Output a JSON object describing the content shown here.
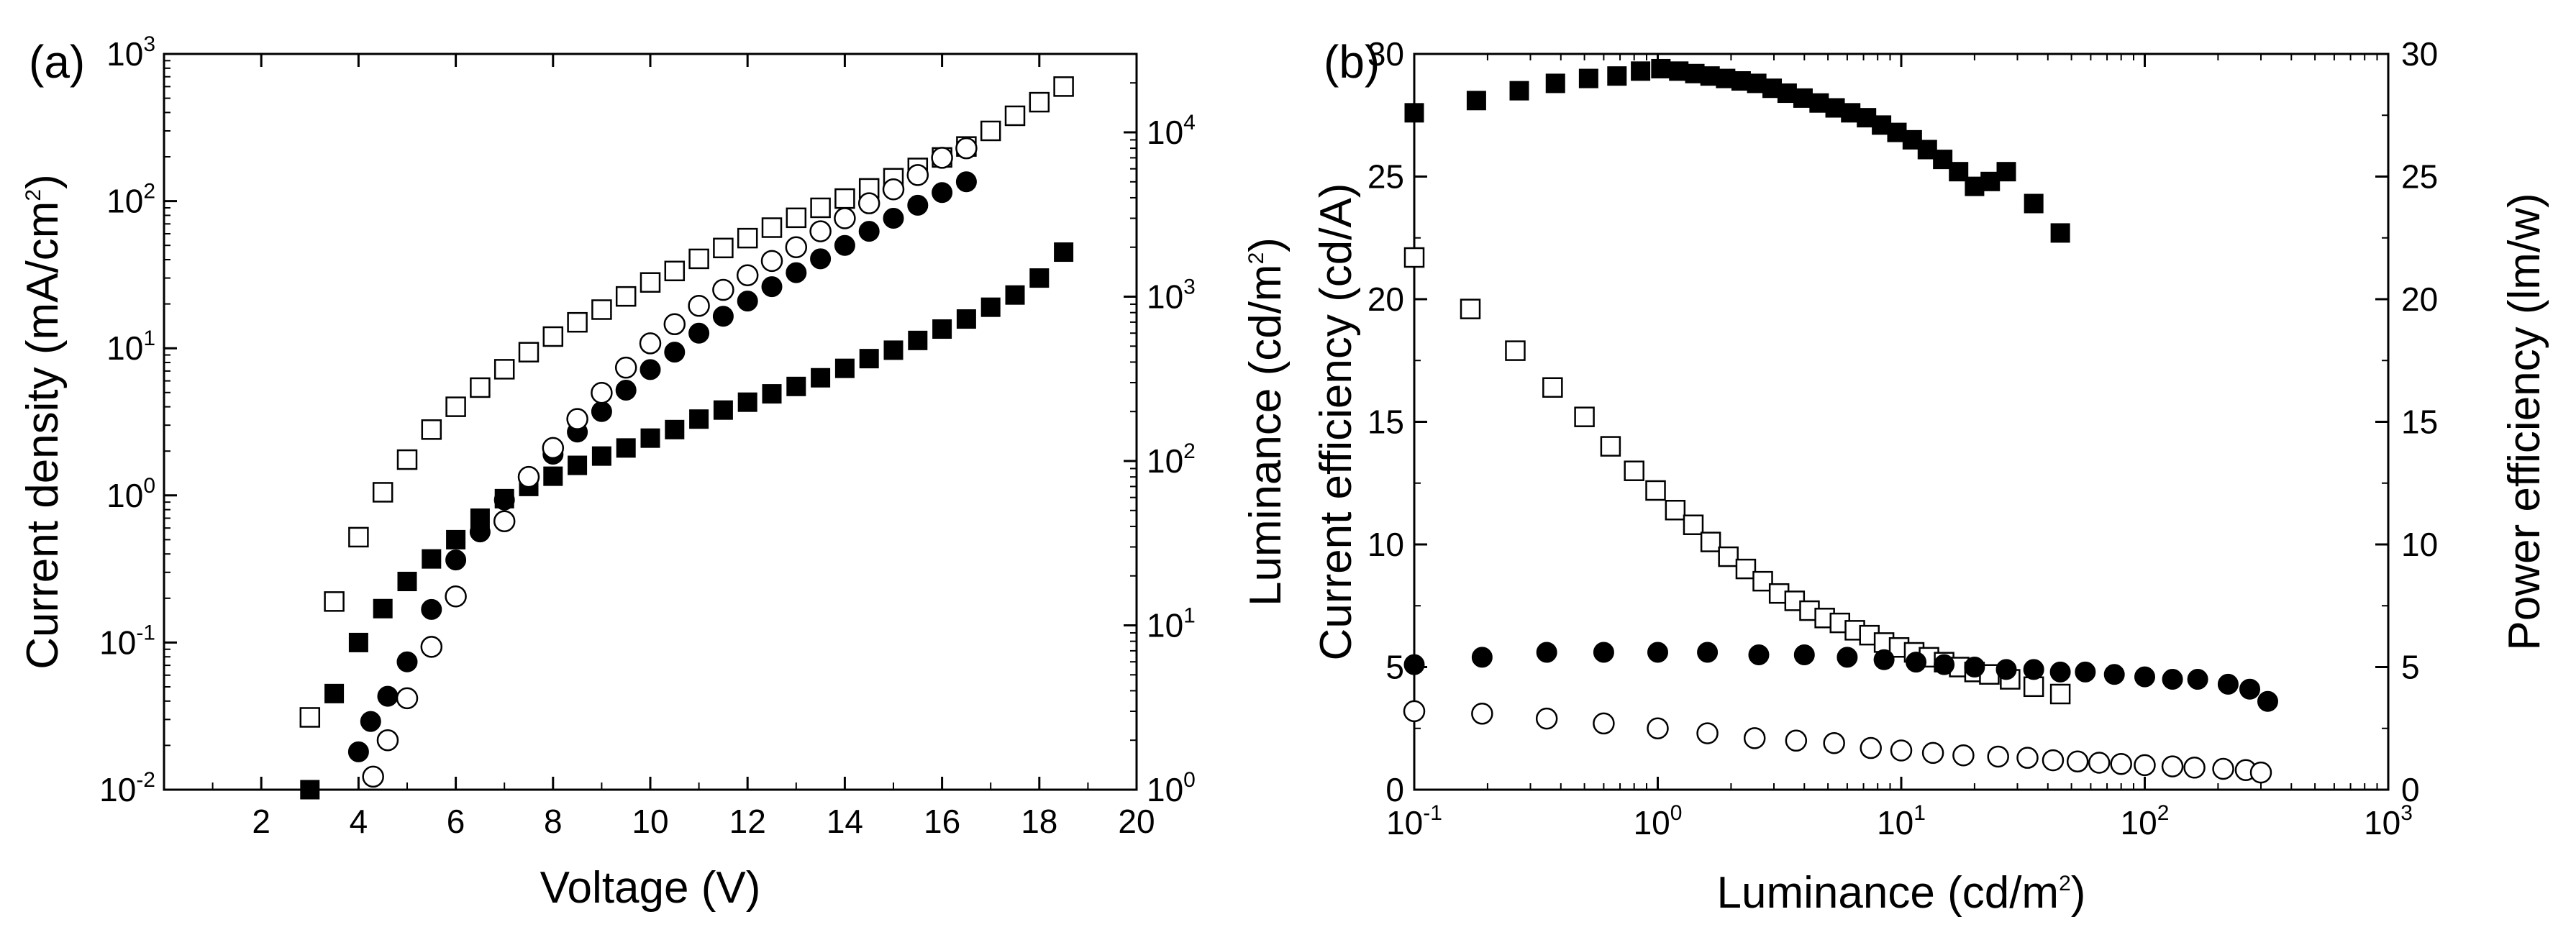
{
  "chart_data": [
    {
      "panel": "(a)",
      "type": "scatter",
      "xlabel": "Voltage (V)",
      "ylabel": "Current density (mA/cm^2)",
      "y2label": "Luminance (cd/m^2)",
      "xlim": [
        0,
        20
      ],
      "ylim": [
        0.01,
        1000
      ],
      "y2lim": [
        1,
        30000
      ],
      "yscale": "log",
      "y2scale": "log",
      "xticks": [
        2,
        4,
        6,
        8,
        10,
        12,
        14,
        16,
        18,
        20
      ],
      "xtick_labels": [
        "2",
        "4",
        "6",
        "8",
        "10",
        "12",
        "14",
        "16",
        "18",
        "20"
      ],
      "yticks": [
        0.01,
        0.1,
        1,
        10,
        100,
        1000
      ],
      "ytick_labels": [
        {
          "base": "10",
          "exp": "-2"
        },
        {
          "base": "10",
          "exp": "-1"
        },
        {
          "base": "10",
          "exp": "0"
        },
        {
          "base": "10",
          "exp": "1"
        },
        {
          "base": "10",
          "exp": "2"
        },
        {
          "base": "10",
          "exp": "3"
        }
      ],
      "y2ticks": [
        1,
        10,
        100,
        1000,
        10000
      ],
      "y2tick_labels": [
        {
          "base": "10",
          "exp": "0"
        },
        {
          "base": "10",
          "exp": "1"
        },
        {
          "base": "10",
          "exp": "2"
        },
        {
          "base": "10",
          "exp": "3"
        },
        {
          "base": "10",
          "exp": "4"
        }
      ],
      "series": [
        {
          "name": "Current density (filled squares)",
          "marker": "square-filled",
          "axis": "left",
          "x": [
            3.0,
            3.5,
            4.0,
            4.5,
            5.0,
            5.5,
            6.0,
            6.5,
            7.0,
            7.5,
            8.0,
            8.5,
            9.0,
            9.5,
            10.0,
            10.5,
            11.0,
            11.5,
            12.0,
            12.5,
            13.0,
            13.5,
            14.0,
            14.5,
            15.0,
            15.5,
            16.0,
            16.5,
            17.0,
            17.5,
            18.0,
            18.5
          ],
          "y": [
            0.01,
            0.045,
            0.1,
            0.17,
            0.26,
            0.37,
            0.5,
            0.7,
            0.95,
            1.15,
            1.35,
            1.6,
            1.85,
            2.1,
            2.45,
            2.8,
            3.3,
            3.8,
            4.3,
            4.9,
            5.5,
            6.3,
            7.3,
            8.5,
            9.7,
            11.3,
            13.5,
            15.8,
            19.0,
            23.0,
            30.0,
            45.0
          ]
        },
        {
          "name": "Current density (open squares)",
          "marker": "square-open",
          "axis": "left",
          "x": [
            3.0,
            3.5,
            4.0,
            4.5,
            5.0,
            5.5,
            6.0,
            6.5,
            7.0,
            7.5,
            8.0,
            8.5,
            9.0,
            9.5,
            10.0,
            10.5,
            11.0,
            11.5,
            12.0,
            12.5,
            13.0,
            13.5,
            14.0,
            14.5,
            15.0,
            15.5,
            16.0,
            16.5,
            17.0,
            17.5,
            18.0,
            18.5
          ],
          "y": [
            0.031,
            0.19,
            0.52,
            1.05,
            1.75,
            2.8,
            4.0,
            5.4,
            7.2,
            9.4,
            12.0,
            15.0,
            18.3,
            22.5,
            28.0,
            33.5,
            40.5,
            48.0,
            56.0,
            66.0,
            77.0,
            90.0,
            104.0,
            122.0,
            143.0,
            168.0,
            198.0,
            235.0,
            300.0,
            380.0,
            470.0,
            600.0
          ]
        },
        {
          "name": "Luminance (filled circles)",
          "marker": "circle-filled",
          "axis": "right",
          "x": [
            4.0,
            4.25,
            4.6,
            5.0,
            5.5,
            6.0,
            6.5,
            7.0,
            7.5,
            8.0,
            8.5,
            9.0,
            9.5,
            10.0,
            10.5,
            11.0,
            11.5,
            12.0,
            12.5,
            13.0,
            13.5,
            14.0,
            14.5,
            15.0,
            15.5,
            16.0,
            16.5
          ],
          "y": [
            1.7,
            2.6,
            3.7,
            6.0,
            12.5,
            25.0,
            37.0,
            58.0,
            80.0,
            110.0,
            150.0,
            200.0,
            270.0,
            360.0,
            460.0,
            600.0,
            760.0,
            940.0,
            1150.0,
            1400.0,
            1700.0,
            2050.0,
            2500.0,
            3000.0,
            3600.0,
            4300.0,
            5000.0
          ]
        },
        {
          "name": "Luminance (open circles)",
          "marker": "circle-open",
          "axis": "right",
          "x": [
            4.3,
            4.6,
            5.0,
            5.5,
            6.0,
            7.0,
            7.5,
            8.0,
            8.5,
            9.0,
            9.5,
            10.0,
            10.5,
            11.0,
            11.5,
            12.0,
            12.5,
            13.0,
            13.5,
            14.0,
            14.5,
            15.0,
            15.5,
            16.0,
            16.5
          ],
          "y": [
            1.2,
            2.0,
            3.6,
            7.4,
            15.0,
            43.0,
            80.0,
            120.0,
            180.0,
            260.0,
            370.0,
            520.0,
            680.0,
            880.0,
            1100.0,
            1350.0,
            1650.0,
            2000.0,
            2500.0,
            3000.0,
            3700.0,
            4500.0,
            5500.0,
            7000.0,
            8000.0
          ]
        }
      ]
    },
    {
      "panel": "(b)",
      "type": "scatter",
      "xlabel": "Luminance (cd/m^2)",
      "ylabel": "Current efficiency (cd/A)",
      "y2label": "Power efficiency (lm/w)",
      "xlim": [
        0.1,
        1000
      ],
      "xscale": "log",
      "ylim": [
        0,
        30
      ],
      "y2lim": [
        0,
        30
      ],
      "xticks": [
        0.1,
        1,
        10,
        100,
        1000
      ],
      "xtick_labels": [
        {
          "base": "10",
          "exp": "-1"
        },
        {
          "base": "10",
          "exp": "0"
        },
        {
          "base": "10",
          "exp": "1"
        },
        {
          "base": "10",
          "exp": "2"
        },
        {
          "base": "10",
          "exp": "3"
        }
      ],
      "yticks": [
        0,
        5,
        10,
        15,
        20,
        25,
        30
      ],
      "ytick_labels": [
        "0",
        "5",
        "10",
        "15",
        "20",
        "25",
        "30"
      ],
      "y2ticks": [
        0,
        5,
        10,
        15,
        20,
        25,
        30
      ],
      "y2tick_labels": [
        "0",
        "5",
        "10",
        "15",
        "20",
        "25",
        "30"
      ],
      "series": [
        {
          "name": "Current efficiency (filled squares)",
          "marker": "square-filled",
          "axis": "left",
          "x": [
            0.1,
            0.18,
            0.27,
            0.38,
            0.52,
            0.68,
            0.85,
            1.03,
            1.22,
            1.42,
            1.64,
            1.9,
            2.2,
            2.55,
            2.95,
            3.4,
            3.95,
            4.6,
            5.35,
            6.2,
            7.2,
            8.3,
            9.6,
            11.1,
            12.8,
            14.8,
            17.2,
            20.0,
            23.2,
            27.0,
            35.0,
            45.0
          ],
          "y": [
            27.6,
            28.1,
            28.5,
            28.8,
            29.0,
            29.1,
            29.3,
            29.4,
            29.3,
            29.2,
            29.1,
            29.0,
            28.9,
            28.8,
            28.6,
            28.4,
            28.2,
            28.0,
            27.8,
            27.6,
            27.4,
            27.1,
            26.8,
            26.5,
            26.1,
            25.7,
            25.2,
            24.6,
            24.8,
            25.2,
            23.9,
            22.7
          ]
        },
        {
          "name": "Power efficiency (open squares)",
          "marker": "square-open",
          "axis": "right",
          "x": [
            0.1,
            0.17,
            0.26,
            0.37,
            0.5,
            0.64,
            0.8,
            0.98,
            1.18,
            1.4,
            1.65,
            1.95,
            2.3,
            2.7,
            3.15,
            3.65,
            4.2,
            4.85,
            5.6,
            6.45,
            7.4,
            8.5,
            9.8,
            11.3,
            13.0,
            15.0,
            17.3,
            20.0,
            23.0,
            28.0,
            35.0,
            45.0
          ],
          "y": [
            21.7,
            19.6,
            17.9,
            16.4,
            15.2,
            14.0,
            13.0,
            12.2,
            11.4,
            10.8,
            10.1,
            9.5,
            9.0,
            8.5,
            8.0,
            7.7,
            7.3,
            7.0,
            6.8,
            6.5,
            6.3,
            6.0,
            5.8,
            5.6,
            5.4,
            5.2,
            5.0,
            4.8,
            4.7,
            4.5,
            4.2,
            3.9
          ]
        },
        {
          "name": "Current efficiency (filled circles)",
          "marker": "circle-filled",
          "axis": "left",
          "x": [
            0.1,
            0.19,
            0.35,
            0.6,
            1.0,
            1.6,
            2.6,
            4.0,
            6.0,
            8.5,
            11.5,
            15.0,
            20.0,
            27.0,
            35.0,
            45.0,
            57.0,
            75.0,
            100.0,
            130.0,
            165.0,
            220.0,
            270.0,
            320.0
          ],
          "y": [
            5.1,
            5.4,
            5.6,
            5.6,
            5.6,
            5.6,
            5.5,
            5.5,
            5.4,
            5.3,
            5.2,
            5.1,
            5.0,
            4.9,
            4.9,
            4.8,
            4.8,
            4.7,
            4.6,
            4.5,
            4.5,
            4.3,
            4.1,
            3.6
          ]
        },
        {
          "name": "Power efficiency (open circles)",
          "marker": "circle-open",
          "axis": "right",
          "x": [
            0.1,
            0.19,
            0.35,
            0.6,
            1.0,
            1.6,
            2.5,
            3.7,
            5.3,
            7.5,
            10.0,
            13.5,
            18.0,
            25.0,
            33.0,
            42.0,
            53.0,
            65.0,
            80.0,
            100.0,
            130.0,
            160.0,
            210.0,
            260.0,
            300.0
          ],
          "y": [
            3.2,
            3.1,
            2.9,
            2.7,
            2.5,
            2.3,
            2.1,
            2.0,
            1.9,
            1.7,
            1.6,
            1.5,
            1.4,
            1.35,
            1.3,
            1.2,
            1.15,
            1.1,
            1.05,
            1.0,
            0.95,
            0.9,
            0.85,
            0.8,
            0.7
          ]
        }
      ]
    }
  ]
}
